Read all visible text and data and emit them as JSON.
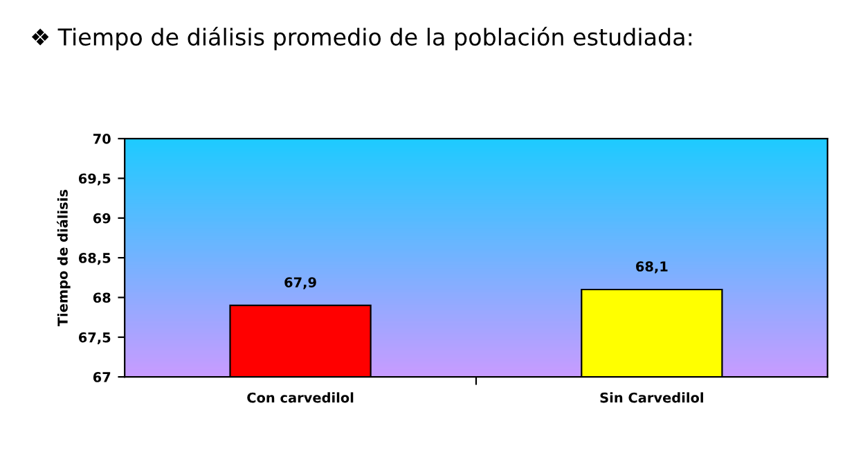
{
  "chart_data": {
    "type": "bar",
    "title": "❖ Tiempo de diálisis promedio de la población estudiada:",
    "ylabel": "Tiempo de diálisis",
    "categories": [
      "Con carvedilol",
      "Sin Carvedilol"
    ],
    "values": [
      67.9,
      68.1
    ],
    "colors": [
      "#ff0000",
      "#ffff00"
    ],
    "value_labels": [
      "67,9",
      "68,1"
    ],
    "ylim": [
      67,
      70
    ],
    "yticks": [
      67,
      {
        "value": 67.5,
        "label": "67,5"
      },
      68,
      {
        "value": 68.5,
        "label": "68,5"
      },
      69,
      {
        "value": 69.5,
        "label": "69,5"
      },
      70
    ],
    "grid": false,
    "legend": false
  }
}
